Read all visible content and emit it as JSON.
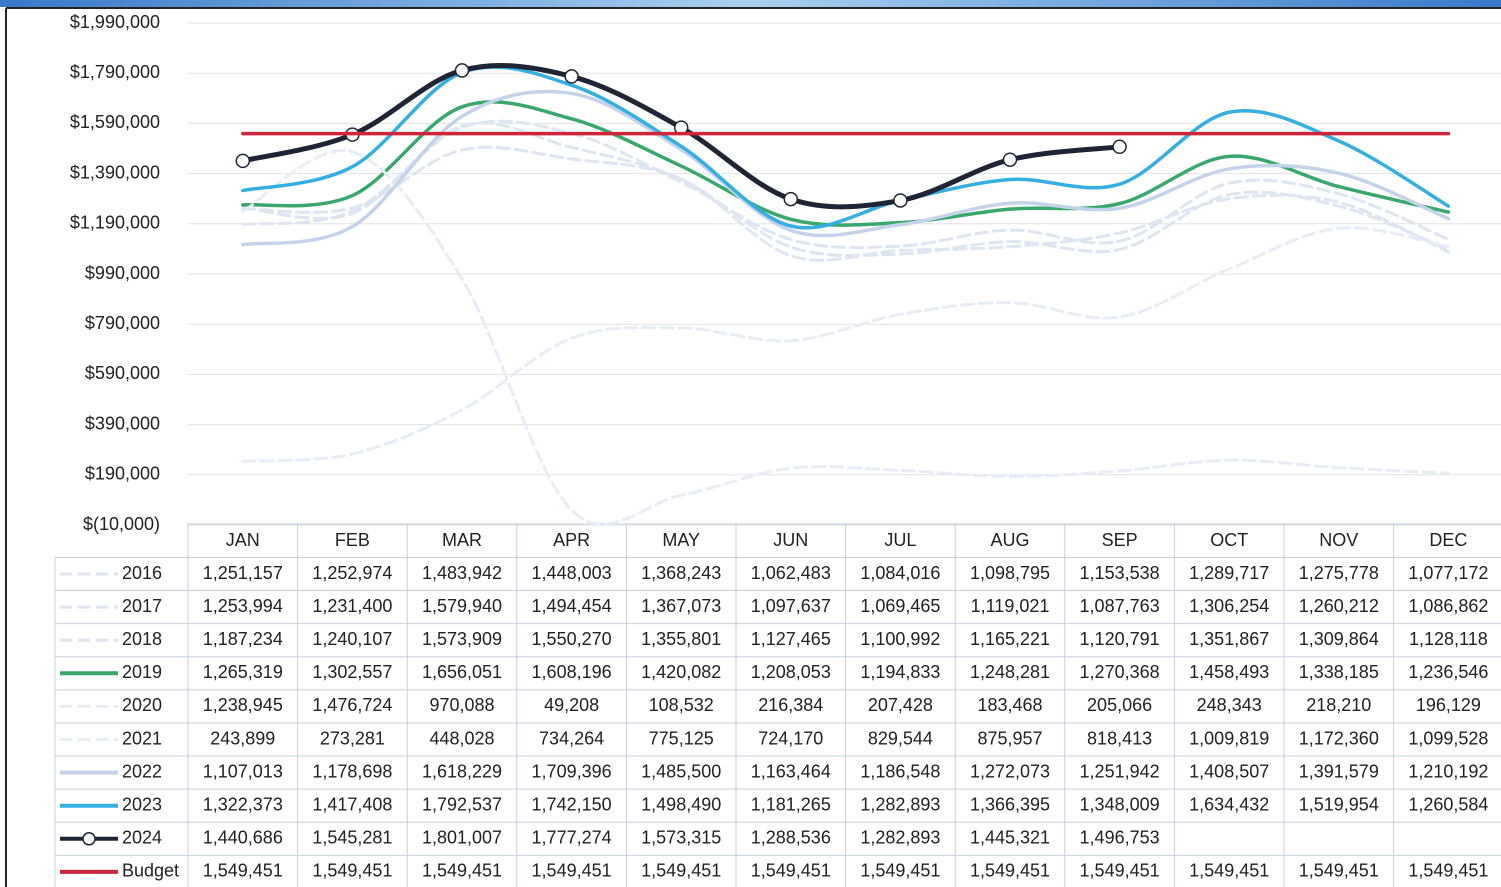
{
  "chart_data": {
    "type": "line",
    "categories": [
      "JAN",
      "FEB",
      "MAR",
      "APR",
      "MAY",
      "JUN",
      "JUL",
      "AUG",
      "SEP",
      "OCT",
      "NOV",
      "DEC"
    ],
    "ylim": [
      -10000,
      1990000
    ],
    "yticks": [
      {
        "value": -10000,
        "label": "$(10,000)"
      },
      {
        "value": 190000,
        "label": "$190,000"
      },
      {
        "value": 390000,
        "label": "$390,000"
      },
      {
        "value": 590000,
        "label": "$590,000"
      },
      {
        "value": 790000,
        "label": "$790,000"
      },
      {
        "value": 990000,
        "label": "$990,000"
      },
      {
        "value": 1190000,
        "label": "$1,190,000"
      },
      {
        "value": 1390000,
        "label": "$1,390,000"
      },
      {
        "value": 1590000,
        "label": "$1,590,000"
      },
      {
        "value": 1790000,
        "label": "$1,790,000"
      },
      {
        "value": 1990000,
        "label": "$1,990,000"
      }
    ],
    "grid": true,
    "series": [
      {
        "name": "2016",
        "color": "#dde6f1",
        "dashed": true,
        "values": [
          1251157,
          1252974,
          1483942,
          1448003,
          1368243,
          1062483,
          1084016,
          1098795,
          1153538,
          1289717,
          1275778,
          1077172
        ],
        "value_labels": [
          "1,251,157",
          "1,252,974",
          "1,483,942",
          "1,448,003",
          "1,368,243",
          "1,062,483",
          "1,084,016",
          "1,098,795",
          "1,153,538",
          "1,289,717",
          "1,275,778",
          "1,077,172"
        ]
      },
      {
        "name": "2017",
        "color": "#dde6f1",
        "dashed": true,
        "values": [
          1253994,
          1231400,
          1579940,
          1494454,
          1367073,
          1097637,
          1069465,
          1119021,
          1087763,
          1306254,
          1260212,
          1086862
        ],
        "value_labels": [
          "1,253,994",
          "1,231,400",
          "1,579,940",
          "1,494,454",
          "1,367,073",
          "1,097,637",
          "1,069,465",
          "1,119,021",
          "1,087,763",
          "1,306,254",
          "1,260,212",
          "1,086,862"
        ]
      },
      {
        "name": "2018",
        "color": "#dde6f1",
        "dashed": true,
        "values": [
          1187234,
          1240107,
          1573909,
          1550270,
          1355801,
          1127465,
          1100992,
          1165221,
          1120791,
          1351867,
          1309864,
          1128118
        ],
        "value_labels": [
          "1,187,234",
          "1,240,107",
          "1,573,909",
          "1,550,270",
          "1,355,801",
          "1,127,465",
          "1,100,992",
          "1,165,221",
          "1,120,791",
          "1,351,867",
          "1,309,864",
          "1,128,118"
        ]
      },
      {
        "name": "2019",
        "color": "#3aa76d",
        "dashed": false,
        "values": [
          1265319,
          1302557,
          1656051,
          1608196,
          1420082,
          1208053,
          1194833,
          1248281,
          1270368,
          1458493,
          1338185,
          1236546
        ],
        "value_labels": [
          "1,265,319",
          "1,302,557",
          "1,656,051",
          "1,608,196",
          "1,420,082",
          "1,208,053",
          "1,194,833",
          "1,248,281",
          "1,270,368",
          "1,458,493",
          "1,338,185",
          "1,236,546"
        ]
      },
      {
        "name": "2020",
        "color": "#e6edf5",
        "dashed": true,
        "values": [
          1238945,
          1476724,
          970088,
          49208,
          108532,
          216384,
          207428,
          183468,
          205066,
          248343,
          218210,
          196129
        ],
        "value_labels": [
          "1,238,945",
          "1,476,724",
          "970,088",
          "49,208",
          "108,532",
          "216,384",
          "207,428",
          "183,468",
          "205,066",
          "248,343",
          "218,210",
          "196,129"
        ]
      },
      {
        "name": "2021",
        "color": "#e6edf5",
        "dashed": true,
        "values": [
          243899,
          273281,
          448028,
          734264,
          775125,
          724170,
          829544,
          875957,
          818413,
          1009819,
          1172360,
          1099528
        ],
        "value_labels": [
          "243,899",
          "273,281",
          "448,028",
          "734,264",
          "775,125",
          "724,170",
          "829,544",
          "875,957",
          "818,413",
          "1,009,819",
          "1,172,360",
          "1,099,528"
        ]
      },
      {
        "name": "2022",
        "color": "#c5d3ea",
        "dashed": false,
        "values": [
          1107013,
          1178698,
          1618229,
          1709396,
          1485500,
          1163464,
          1186548,
          1272073,
          1251942,
          1408507,
          1391579,
          1210192
        ],
        "value_labels": [
          "1,107,013",
          "1,178,698",
          "1,618,229",
          "1,709,396",
          "1,485,500",
          "1,163,464",
          "1,186,548",
          "1,272,073",
          "1,251,942",
          "1,408,507",
          "1,391,579",
          "1,210,192"
        ]
      },
      {
        "name": "2023",
        "color": "#35aee2",
        "dashed": false,
        "values": [
          1322373,
          1417408,
          1792537,
          1742150,
          1498490,
          1181265,
          1282893,
          1366395,
          1348009,
          1634432,
          1519954,
          1260584
        ],
        "value_labels": [
          "1,322,373",
          "1,417,408",
          "1,792,537",
          "1,742,150",
          "1,498,490",
          "1,181,265",
          "1,282,893",
          "1,366,395",
          "1,348,009",
          "1,634,432",
          "1,519,954",
          "1,260,584"
        ]
      },
      {
        "name": "2024",
        "color": "#1f2535",
        "dashed": false,
        "marker": "circle",
        "values": [
          1440686,
          1545281,
          1801007,
          1777274,
          1573315,
          1288536,
          1282893,
          1445321,
          1496753,
          null,
          null,
          null
        ],
        "value_labels": [
          "1,440,686",
          "1,545,281",
          "1,801,007",
          "1,777,274",
          "1,573,315",
          "1,288,536",
          "1,282,893",
          "1,445,321",
          "1,496,753",
          null,
          null,
          null
        ]
      },
      {
        "name": "Budget",
        "color": "#d0243a",
        "dashed": false,
        "values": [
          1549451,
          1549451,
          1549451,
          1549451,
          1549451,
          1549451,
          1549451,
          1549451,
          1549451,
          1549451,
          1549451,
          1549451
        ],
        "value_labels": [
          "1,549,451",
          "1,549,451",
          "1,549,451",
          "1,549,451",
          "1,549,451",
          "1,549,451",
          "1,549,451",
          "1,549,451",
          "1,549,451",
          "1,549,451",
          "1,549,451",
          "1,549,451"
        ]
      }
    ]
  }
}
